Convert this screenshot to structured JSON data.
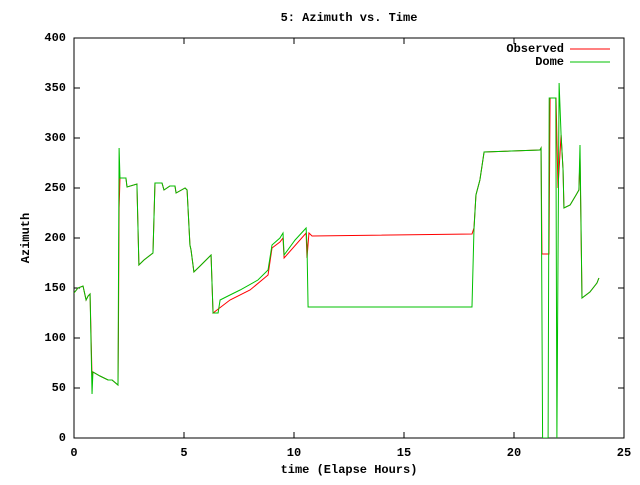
{
  "chart_data": {
    "type": "line",
    "title": "5: Azimuth vs. Time",
    "x_label": "time (Elapse Hours)",
    "y_label": "Azimuth",
    "xlim": [
      0,
      25
    ],
    "xticks": [
      0,
      5,
      10,
      15,
      20,
      25
    ],
    "ylim": [
      0,
      400
    ],
    "yticks": [
      0,
      50,
      100,
      150,
      200,
      250,
      300,
      350,
      400
    ],
    "legend": "top-right",
    "series": [
      {
        "name": "Observed",
        "color": "#ff0000",
        "x": [
          0,
          0.18,
          0.41,
          0.45,
          0.55,
          0.64,
          0.73,
          0.82,
          0.86,
          1.18,
          1.55,
          1.73,
          2.0,
          2.02,
          2.05,
          2.09,
          2.36,
          2.41,
          2.86,
          2.95,
          3.18,
          3.59,
          3.68,
          4.0,
          4.09,
          4.36,
          4.59,
          4.64,
          5.05,
          5.14,
          5.27,
          5.32,
          5.45,
          5.73,
          6.23,
          6.32,
          7.09,
          8.0,
          8.82,
          9.0,
          9.36,
          9.5,
          9.55,
          10.55,
          10.59,
          10.68,
          10.82,
          18.09,
          18.18,
          18.27,
          18.45,
          18.64,
          21.18,
          21.23,
          21.27,
          21.59,
          21.64,
          21.91,
          22.0,
          22.14,
          22.23,
          22.27,
          22.55,
          22.82,
          22.95,
          23.0,
          23.09,
          23.45,
          23.77,
          23.86
        ],
        "values": [
          145,
          150,
          152,
          148,
          138,
          142,
          144,
          60,
          66,
          62,
          58,
          58,
          53,
          105,
          230,
          260,
          260,
          251,
          254,
          173,
          178,
          185,
          255,
          255,
          248,
          252,
          252,
          245,
          250,
          248,
          193,
          188,
          166,
          172,
          183,
          125,
          138,
          148,
          163,
          190,
          196,
          200,
          180,
          205,
          180,
          205,
          202,
          204,
          210,
          243,
          258,
          286,
          288,
          290,
          184,
          184,
          340,
          340,
          250,
          303,
          268,
          230,
          233,
          243,
          248,
          280,
          140,
          146,
          155,
          160
        ]
      },
      {
        "name": "Dome",
        "color": "#00c000",
        "x": [
          0,
          0.18,
          0.41,
          0.45,
          0.55,
          0.64,
          0.73,
          0.82,
          0.86,
          1.18,
          1.55,
          1.73,
          2.0,
          2.05,
          2.09,
          2.36,
          2.41,
          2.86,
          2.95,
          3.18,
          3.59,
          3.68,
          4.0,
          4.09,
          4.36,
          4.59,
          4.64,
          5.05,
          5.14,
          5.27,
          5.32,
          5.45,
          5.73,
          6.23,
          6.32,
          6.55,
          6.64,
          7.09,
          7.55,
          8.36,
          8.82,
          9.0,
          9.36,
          9.5,
          9.55,
          10.05,
          10.55,
          10.59,
          10.64,
          18.09,
          18.18,
          18.27,
          18.45,
          18.64,
          21.18,
          21.23,
          21.3,
          21.55,
          21.6,
          21.9,
          21.95,
          22.05,
          22.14,
          22.23,
          22.27,
          22.55,
          22.82,
          22.95,
          23.0,
          23.09,
          23.45,
          23.77,
          23.86
        ],
        "values": [
          145,
          150,
          152,
          148,
          138,
          142,
          144,
          44,
          66,
          62,
          58,
          58,
          53,
          290,
          260,
          260,
          251,
          254,
          173,
          178,
          185,
          255,
          255,
          248,
          252,
          252,
          245,
          250,
          248,
          193,
          188,
          166,
          172,
          183,
          125,
          125,
          138,
          143,
          148,
          158,
          168,
          193,
          200,
          205,
          183,
          198,
          210,
          193,
          131,
          131,
          208,
          243,
          258,
          286,
          288,
          290,
          0,
          0,
          340,
          340,
          0,
          355,
          303,
          268,
          230,
          233,
          243,
          248,
          293,
          140,
          146,
          155,
          160
        ]
      }
    ]
  }
}
